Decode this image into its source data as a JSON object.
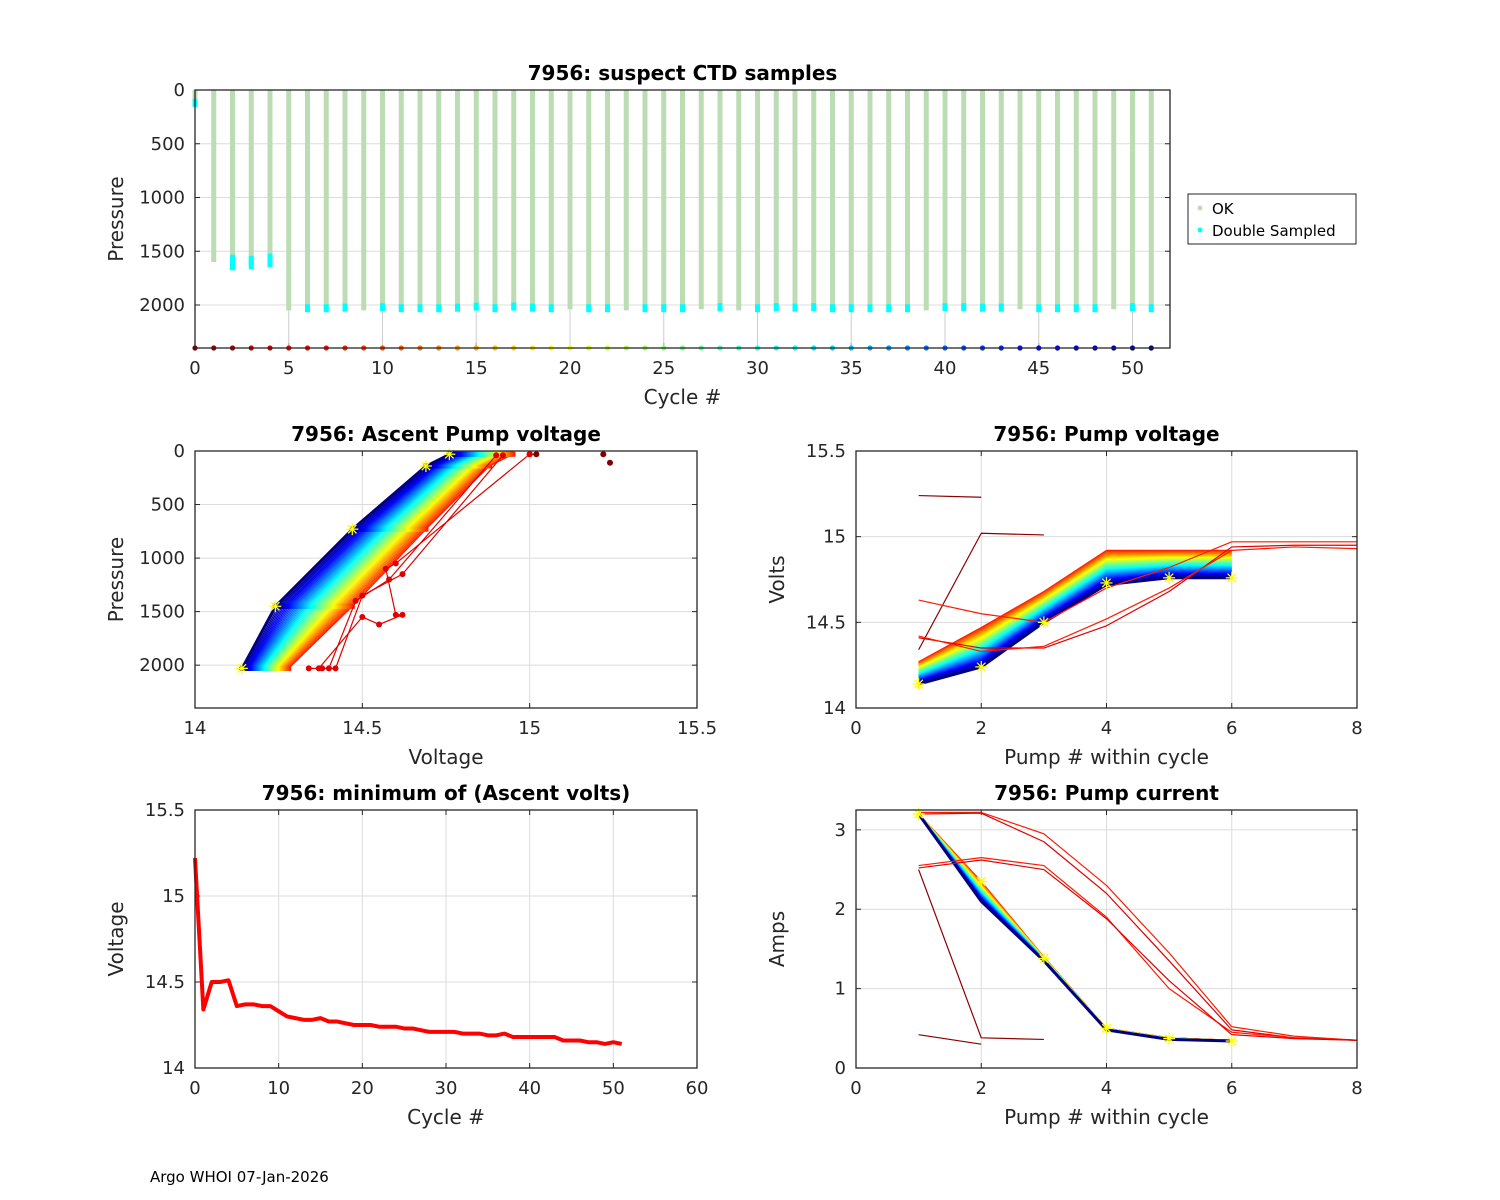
{
  "footer": "Argo WHOI 07-Jan-2026",
  "colors": {
    "ok": "#bcdcb4",
    "double": "#00ffff",
    "marker": "#ffff00",
    "min_line": "#ff0000"
  },
  "chart_data": [
    {
      "id": "ctd",
      "type": "scatter",
      "title": "7956: suspect CTD samples",
      "xlabel": "Cycle #",
      "ylabel": "Pressure",
      "xlim": [
        0,
        52
      ],
      "ylim": [
        2400,
        0
      ],
      "xticks": [
        0,
        5,
        10,
        15,
        20,
        25,
        30,
        35,
        40,
        45,
        50
      ],
      "yticks": [
        0,
        500,
        1000,
        1500,
        2000
      ],
      "grid": true,
      "legend": {
        "placement": "outside-right",
        "entries": [
          {
            "label": "OK",
            "color": "#bcdcb4"
          },
          {
            "label": "Double Sampled",
            "color": "#00ffff"
          }
        ]
      },
      "cycles": [
        0,
        1,
        2,
        3,
        4,
        5,
        6,
        7,
        8,
        9,
        10,
        11,
        12,
        13,
        14,
        15,
        16,
        17,
        18,
        19,
        20,
        21,
        22,
        23,
        24,
        25,
        26,
        27,
        28,
        29,
        30,
        31,
        32,
        33,
        34,
        35,
        36,
        37,
        38,
        39,
        40,
        41,
        42,
        43,
        44,
        45,
        46,
        47,
        48,
        49,
        50,
        51
      ],
      "max_pressure": [
        100,
        1600,
        1650,
        1640,
        1610,
        2050,
        2040,
        2040,
        2040,
        2050,
        2040,
        2040,
        2040,
        2040,
        2040,
        2040,
        2040,
        2040,
        2040,
        2040,
        2040,
        2040,
        2040,
        2050,
        2040,
        2040,
        2040,
        2040,
        2040,
        2050,
        2040,
        2040,
        2040,
        2040,
        2040,
        2040,
        2040,
        2040,
        2040,
        2050,
        2040,
        2040,
        2040,
        2040,
        2040,
        2040,
        2040,
        2040,
        2040,
        2040,
        2040,
        2040
      ],
      "double_sampled": [
        [
          0,
          120
        ],
        [
          2,
          1570
        ],
        [
          2,
          1640
        ],
        [
          3,
          1580
        ],
        [
          3,
          1630
        ],
        [
          4,
          1560
        ],
        [
          4,
          1610
        ],
        [
          6,
          2030
        ],
        [
          7,
          2030
        ],
        [
          8,
          2025
        ],
        [
          10,
          2020
        ],
        [
          11,
          2030
        ],
        [
          12,
          2030
        ],
        [
          13,
          2030
        ],
        [
          14,
          2025
        ],
        [
          15,
          2015
        ],
        [
          16,
          2030
        ],
        [
          17,
          2015
        ],
        [
          18,
          2025
        ],
        [
          19,
          2030
        ],
        [
          21,
          2030
        ],
        [
          22,
          2030
        ],
        [
          24,
          2030
        ],
        [
          25,
          2030
        ],
        [
          26,
          2030
        ],
        [
          28,
          2020
        ],
        [
          30,
          2030
        ],
        [
          31,
          2020
        ],
        [
          32,
          2025
        ],
        [
          33,
          2020
        ],
        [
          34,
          2030
        ],
        [
          35,
          2030
        ],
        [
          36,
          2030
        ],
        [
          37,
          2030
        ],
        [
          38,
          2030
        ],
        [
          40,
          2020
        ],
        [
          41,
          2020
        ],
        [
          42,
          2025
        ],
        [
          43,
          2025
        ],
        [
          45,
          2030
        ],
        [
          46,
          2030
        ],
        [
          47,
          2030
        ],
        [
          48,
          2030
        ],
        [
          50,
          2020
        ],
        [
          51,
          2030
        ]
      ],
      "cycle_marker_pressure": 2400,
      "grid_stems": [
        5,
        10,
        15,
        20,
        25,
        30,
        35,
        40,
        45,
        50
      ]
    },
    {
      "id": "ascent",
      "type": "line",
      "title": "7956: Ascent Pump voltage",
      "xlabel": "Voltage",
      "ylabel": "Pressure",
      "xlim": [
        14,
        15.5
      ],
      "ylim": [
        2400,
        0
      ],
      "xticks": [
        14,
        14.5,
        15,
        15.5
      ],
      "yticks": [
        0,
        500,
        1000,
        1500,
        2000
      ],
      "grid": true,
      "profile_pressures": [
        2030,
        1450,
        730,
        140,
        30
      ],
      "normal_series": {
        "cycles_from": 5,
        "cycles_to": 51,
        "start_voltage": [
          14.28,
          14.47,
          14.69,
          14.88,
          14.95
        ],
        "end_voltage": [
          14.14,
          14.24,
          14.47,
          14.69,
          14.76
        ]
      },
      "anomalous_series": [
        {
          "cycle": 0,
          "points": [
            [
              15.0,
              30
            ],
            [
              15.02,
              30
            ]
          ]
        },
        {
          "cycle": 0,
          "extra_points": [
            [
              15.22,
              30
            ],
            [
              15.24,
              110
            ]
          ]
        },
        {
          "cycle": 1,
          "points": [
            [
              14.37,
              2030
            ],
            [
              14.5,
              1550
            ],
            [
              14.55,
              1620
            ],
            [
              14.62,
              1530
            ],
            [
              14.6,
              1530
            ],
            [
              14.57,
              1100
            ],
            [
              14.6,
              1050
            ],
            [
              15.0,
              30
            ]
          ]
        },
        {
          "cycle": 2,
          "points": [
            [
              14.34,
              2030
            ],
            [
              14.4,
              2030
            ],
            [
              14.48,
              1400
            ],
            [
              14.58,
              1200
            ],
            [
              14.9,
              40
            ]
          ]
        },
        {
          "cycle": 3,
          "points": [
            [
              14.38,
              2030
            ],
            [
              14.42,
              2030
            ],
            [
              14.5,
              1350
            ],
            [
              14.62,
              1150
            ],
            [
              14.92,
              40
            ]
          ]
        }
      ],
      "yellow_markers": [
        [
          14.14,
          2030
        ],
        [
          14.24,
          1450
        ],
        [
          14.47,
          730
        ],
        [
          14.69,
          140
        ],
        [
          14.76,
          30
        ]
      ]
    },
    {
      "id": "pumpv",
      "type": "line",
      "title": "7956: Pump voltage",
      "xlabel": "Pump # within cycle",
      "ylabel": "Volts",
      "xlim": [
        0,
        8
      ],
      "ylim": [
        14,
        15.5
      ],
      "xticks": [
        0,
        2,
        4,
        6,
        8
      ],
      "yticks": [
        14,
        14.5,
        15,
        15.5
      ],
      "grid": true,
      "normal_series": {
        "x": [
          1,
          2,
          3,
          4,
          5,
          6
        ],
        "first": [
          14.27,
          14.47,
          14.68,
          14.92,
          14.92,
          14.92
        ],
        "last": [
          14.14,
          14.24,
          14.5,
          14.72,
          14.76,
          14.76
        ]
      },
      "anomalous_series": [
        {
          "cycle": 0,
          "x": [
            1,
            2
          ],
          "y": [
            15.24,
            15.23
          ]
        },
        {
          "cycle": 0,
          "x": [
            1,
            2,
            3
          ],
          "y": [
            14.34,
            15.02,
            15.01
          ]
        },
        {
          "cycle": 1,
          "x": [
            1,
            2,
            3,
            4,
            5,
            6,
            7,
            8
          ],
          "y": [
            14.63,
            14.55,
            14.5,
            14.7,
            14.82,
            14.97,
            14.97,
            14.97
          ]
        },
        {
          "cycle": 2,
          "x": [
            1,
            2,
            3,
            4,
            5,
            6,
            7,
            8
          ],
          "y": [
            14.41,
            14.35,
            14.35,
            14.48,
            14.68,
            14.94,
            14.95,
            14.95
          ]
        },
        {
          "cycle": 3,
          "x": [
            1,
            2,
            3,
            4,
            5,
            6,
            7,
            8
          ],
          "y": [
            14.42,
            14.33,
            14.36,
            14.52,
            14.7,
            14.92,
            14.94,
            14.93
          ]
        }
      ],
      "yellow_markers": [
        [
          1,
          14.14
        ],
        [
          2,
          14.24
        ],
        [
          3,
          14.5
        ],
        [
          4,
          14.73
        ],
        [
          5,
          14.76
        ],
        [
          6,
          14.76
        ]
      ]
    },
    {
      "id": "minv",
      "type": "line",
      "title": "7956: minimum of (Ascent volts)",
      "xlabel": "Cycle #",
      "ylabel": "Voltage",
      "xlim": [
        0,
        60
      ],
      "ylim": [
        14,
        15.5
      ],
      "xticks": [
        0,
        10,
        20,
        30,
        40,
        50,
        60
      ],
      "yticks": [
        14,
        14.5,
        15,
        15.5
      ],
      "grid": true,
      "series": [
        {
          "name": "min ascent volts",
          "color": "#ff0000",
          "x": [
            0,
            1,
            2,
            3,
            4,
            5,
            6,
            7,
            8,
            9,
            10,
            11,
            12,
            13,
            14,
            15,
            16,
            17,
            18,
            19,
            20,
            21,
            22,
            23,
            24,
            25,
            26,
            27,
            28,
            29,
            30,
            31,
            32,
            33,
            34,
            35,
            36,
            37,
            38,
            39,
            40,
            41,
            42,
            43,
            44,
            45,
            46,
            47,
            48,
            49,
            50,
            51
          ],
          "y": [
            15.22,
            14.34,
            14.5,
            14.5,
            14.51,
            14.36,
            14.37,
            14.37,
            14.36,
            14.36,
            14.33,
            14.3,
            14.29,
            14.28,
            14.28,
            14.29,
            14.27,
            14.27,
            14.26,
            14.25,
            14.25,
            14.25,
            14.24,
            14.24,
            14.24,
            14.23,
            14.23,
            14.22,
            14.21,
            14.21,
            14.21,
            14.21,
            14.2,
            14.2,
            14.2,
            14.19,
            14.19,
            14.2,
            14.18,
            14.18,
            14.18,
            14.18,
            14.18,
            14.18,
            14.16,
            14.16,
            14.16,
            14.15,
            14.15,
            14.14,
            14.15,
            14.14
          ]
        }
      ]
    },
    {
      "id": "pumpc",
      "type": "line",
      "title": "7956: Pump current",
      "xlabel": "Pump # within cycle",
      "ylabel": "Amps",
      "xlim": [
        0,
        8
      ],
      "ylim": [
        0,
        3.25
      ],
      "xticks": [
        0,
        2,
        4,
        6,
        8
      ],
      "yticks": [
        0,
        1,
        2,
        3
      ],
      "grid": true,
      "normal_series": {
        "x": [
          1,
          2,
          3,
          4,
          5,
          6
        ],
        "first": [
          3.2,
          2.35,
          1.4,
          0.5,
          0.38,
          0.35
        ],
        "last": [
          3.2,
          2.1,
          1.35,
          0.48,
          0.36,
          0.34
        ]
      },
      "anomalous_series": [
        {
          "cycle": 0,
          "x": [
            1,
            2
          ],
          "y": [
            0.42,
            0.3
          ]
        },
        {
          "cycle": 0,
          "x": [
            1,
            2,
            3
          ],
          "y": [
            2.5,
            0.38,
            0.36
          ]
        },
        {
          "cycle": 1,
          "x": [
            1,
            2,
            3,
            4,
            5,
            6,
            7,
            8
          ],
          "y": [
            3.22,
            3.22,
            2.95,
            2.3,
            1.45,
            0.52,
            0.4,
            0.35
          ]
        },
        {
          "cycle": 2,
          "x": [
            1,
            2,
            3,
            4,
            5,
            6,
            7,
            8
          ],
          "y": [
            3.2,
            3.21,
            2.85,
            2.2,
            1.35,
            0.48,
            0.38,
            0.35
          ]
        },
        {
          "cycle": 3,
          "x": [
            1,
            2,
            3,
            4,
            5,
            6,
            7,
            8
          ],
          "y": [
            2.55,
            2.65,
            2.55,
            1.9,
            1.0,
            0.45,
            0.38,
            0.35
          ]
        },
        {
          "cycle": 4,
          "x": [
            1,
            2,
            3,
            4,
            5,
            6,
            7,
            8
          ],
          "y": [
            2.52,
            2.62,
            2.5,
            1.88,
            1.1,
            0.42,
            0.37,
            0.35
          ]
        }
      ],
      "yellow_markers": [
        [
          1,
          3.2
        ],
        [
          2,
          2.35
        ],
        [
          3,
          1.38
        ],
        [
          4,
          0.5
        ],
        [
          5,
          0.37
        ],
        [
          6,
          0.34
        ]
      ]
    }
  ]
}
